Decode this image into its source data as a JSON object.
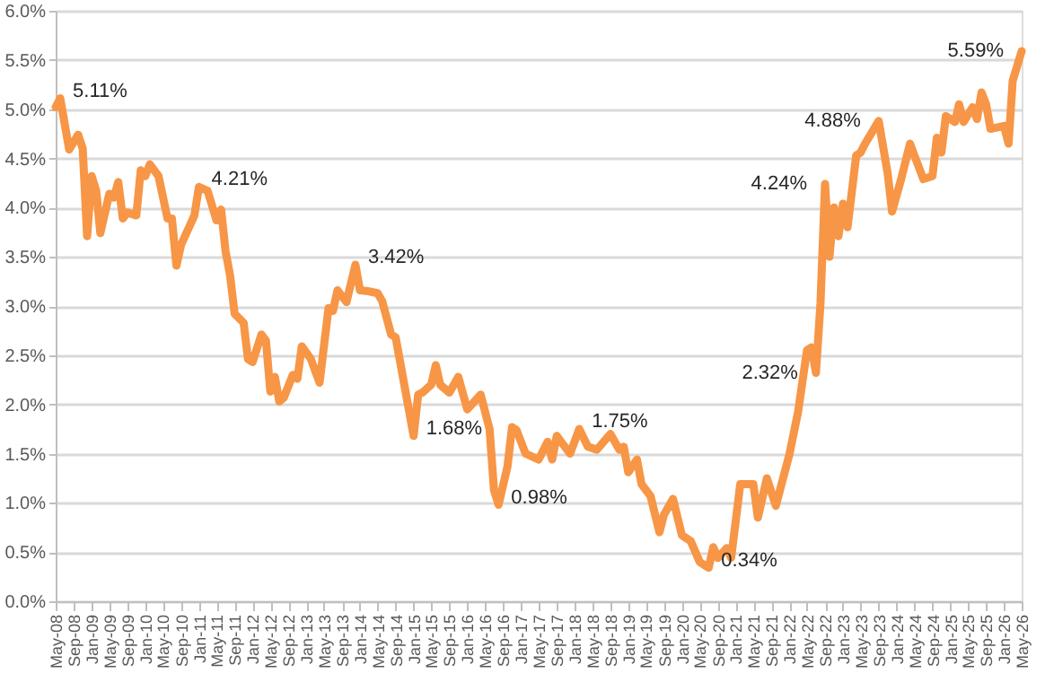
{
  "chart_data": {
    "type": "line",
    "grid": "y",
    "xlim": [
      "2008-05",
      "2026-05"
    ],
    "ylim": [
      0,
      6
    ],
    "yticks": [
      {
        "value": 0,
        "label": "0.0%"
      },
      {
        "value": 0.5,
        "label": "0.5%"
      },
      {
        "value": 1,
        "label": "1.0%"
      },
      {
        "value": 1.5,
        "label": "1.5%"
      },
      {
        "value": 2,
        "label": "2.0%"
      },
      {
        "value": 2.5,
        "label": "2.5%"
      },
      {
        "value": 3,
        "label": "3.0%"
      },
      {
        "value": 3.5,
        "label": "3.5%"
      },
      {
        "value": 4,
        "label": "4.0%"
      },
      {
        "value": 4.5,
        "label": "4.5%"
      },
      {
        "value": 5,
        "label": "5.0%"
      },
      {
        "value": 5.5,
        "label": "5.5%"
      },
      {
        "value": 6,
        "label": "6.0%"
      }
    ],
    "xticks": [
      {
        "value": "2008-05",
        "label": "May-08"
      },
      {
        "value": "2008-09",
        "label": "Sep-08"
      },
      {
        "value": "2009-01",
        "label": "Jan-09"
      },
      {
        "value": "2009-05",
        "label": "May-09"
      },
      {
        "value": "2009-09",
        "label": "Sep-09"
      },
      {
        "value": "2010-01",
        "label": "Jan-10"
      },
      {
        "value": "2010-05",
        "label": "May-10"
      },
      {
        "value": "2010-09",
        "label": "Sep-10"
      },
      {
        "value": "2011-01",
        "label": "Jan-11"
      },
      {
        "value": "2011-05",
        "label": "May-11"
      },
      {
        "value": "2011-09",
        "label": "Sep-11"
      },
      {
        "value": "2012-01",
        "label": "Jan-12"
      },
      {
        "value": "2012-05",
        "label": "May-12"
      },
      {
        "value": "2012-09",
        "label": "Sep-12"
      },
      {
        "value": "2013-01",
        "label": "Jan-13"
      },
      {
        "value": "2013-05",
        "label": "May-13"
      },
      {
        "value": "2013-09",
        "label": "Sep-13"
      },
      {
        "value": "2014-01",
        "label": "Jan-14"
      },
      {
        "value": "2014-05",
        "label": "May-14"
      },
      {
        "value": "2014-09",
        "label": "Sep-14"
      },
      {
        "value": "2015-01",
        "label": "Jan-15"
      },
      {
        "value": "2015-05",
        "label": "May-15"
      },
      {
        "value": "2015-09",
        "label": "Sep-15"
      },
      {
        "value": "2016-01",
        "label": "Jan-16"
      },
      {
        "value": "2016-05",
        "label": "May-16"
      },
      {
        "value": "2016-09",
        "label": "Sep-16"
      },
      {
        "value": "2017-01",
        "label": "Jan-17"
      },
      {
        "value": "2017-05",
        "label": "May-17"
      },
      {
        "value": "2017-09",
        "label": "Sep-17"
      },
      {
        "value": "2018-01",
        "label": "Jan-18"
      },
      {
        "value": "2018-05",
        "label": "May-18"
      },
      {
        "value": "2018-09",
        "label": "Sep-18"
      },
      {
        "value": "2019-01",
        "label": "Jan-19"
      },
      {
        "value": "2019-05",
        "label": "May-19"
      },
      {
        "value": "2019-09",
        "label": "Sep-19"
      },
      {
        "value": "2020-01",
        "label": "Jan-20"
      },
      {
        "value": "2020-05",
        "label": "May-20"
      },
      {
        "value": "2020-09",
        "label": "Sep-20"
      },
      {
        "value": "2021-01",
        "label": "Jan-21"
      },
      {
        "value": "2021-05",
        "label": "May-21"
      },
      {
        "value": "2021-09",
        "label": "Sep-21"
      },
      {
        "value": "2022-01",
        "label": "Jan-22"
      },
      {
        "value": "2022-05",
        "label": "May-22"
      },
      {
        "value": "2022-09",
        "label": "Sep-22"
      },
      {
        "value": "2023-01",
        "label": "Jan-23"
      },
      {
        "value": "2023-05",
        "label": "May-23"
      },
      {
        "value": "2023-09",
        "label": "Sep-23"
      },
      {
        "value": "2024-01",
        "label": "Jan-24"
      },
      {
        "value": "2024-05",
        "label": "May-24"
      },
      {
        "value": "2024-09",
        "label": "Sep-24"
      },
      {
        "value": "2025-01",
        "label": "Jan-25"
      },
      {
        "value": "2025-05",
        "label": "May-25"
      },
      {
        "value": "2025-09",
        "label": "Sep-25"
      },
      {
        "value": "2026-01",
        "label": "Jan-26"
      },
      {
        "value": "2026-05",
        "label": "May-26"
      }
    ],
    "x": [
      "2008-05",
      "2008-06",
      "2008-08",
      "2008-10",
      "2008-11",
      "2008-12",
      "2009-01",
      "2009-02",
      "2009-03",
      "2009-05",
      "2009-06",
      "2009-07",
      "2009-08",
      "2009-09",
      "2009-11",
      "2009-12",
      "2010-01",
      "2010-02",
      "2010-04",
      "2010-06",
      "2010-07",
      "2010-08",
      "2010-09",
      "2010-12",
      "2011-01",
      "2011-03",
      "2011-05",
      "2011-06",
      "2011-07",
      "2011-08",
      "2011-09",
      "2011-11",
      "2011-12",
      "2012-01",
      "2012-03",
      "2012-04",
      "2012-05",
      "2012-06",
      "2012-07",
      "2012-08",
      "2012-10",
      "2012-11",
      "2012-12",
      "2013-02",
      "2013-04",
      "2013-06",
      "2013-07",
      "2013-08",
      "2013-10",
      "2013-12",
      "2014-01",
      "2014-03",
      "2014-05",
      "2014-06",
      "2014-08",
      "2014-09",
      "2015-01",
      "2015-02",
      "2015-03",
      "2015-05",
      "2015-06",
      "2015-07",
      "2015-09",
      "2015-11",
      "2016-01",
      "2016-04",
      "2016-06",
      "2016-07",
      "2016-08",
      "2016-10",
      "2016-11",
      "2016-12",
      "2017-02",
      "2017-05",
      "2017-07",
      "2017-08",
      "2017-09",
      "2017-10",
      "2017-12",
      "2018-02",
      "2018-04",
      "2018-06",
      "2018-09",
      "2018-11",
      "2018-12",
      "2019-01",
      "2019-03",
      "2019-04",
      "2019-06",
      "2019-08",
      "2019-09",
      "2019-11",
      "2020-01",
      "2020-03",
      "2020-05",
      "2020-07",
      "2020-08",
      "2020-09",
      "2020-11",
      "2020-12",
      "2021-02",
      "2021-05",
      "2021-06",
      "2021-08",
      "2021-10",
      "2022-01",
      "2022-03",
      "2022-05",
      "2022-06",
      "2022-07",
      "2022-08",
      "2022-09",
      "2022-10",
      "2022-11",
      "2022-12",
      "2023-01",
      "2023-02",
      "2023-04",
      "2023-05",
      "2023-06",
      "2023-09",
      "2023-11",
      "2023-12",
      "2024-02",
      "2024-04",
      "2024-05",
      "2024-07",
      "2024-09",
      "2024-10",
      "2024-11",
      "2024-12",
      "2025-02",
      "2025-03",
      "2025-04",
      "2025-06",
      "2025-07",
      "2025-08",
      "2025-09",
      "2025-10",
      "2026-01",
      "2026-02",
      "2026-03",
      "2026-05"
    ],
    "series": [
      {
        "color": "#f79646",
        "values": [
          5.02,
          5.11,
          4.59,
          4.74,
          4.6,
          3.71,
          4.32,
          4.17,
          3.74,
          4.14,
          4.1,
          4.26,
          3.89,
          3.95,
          3.92,
          4.38,
          4.32,
          4.44,
          4.32,
          3.89,
          3.89,
          3.41,
          3.62,
          3.92,
          4.21,
          4.17,
          3.87,
          3.98,
          3.56,
          3.31,
          2.92,
          2.83,
          2.46,
          2.43,
          2.71,
          2.65,
          2.13,
          2.28,
          2.03,
          2.07,
          2.3,
          2.26,
          2.59,
          2.46,
          2.22,
          2.98,
          2.95,
          3.16,
          3.04,
          3.42,
          3.16,
          3.15,
          3.13,
          3.05,
          2.71,
          2.68,
          1.68,
          2.1,
          2.12,
          2.2,
          2.4,
          2.2,
          2.12,
          2.28,
          1.95,
          2.1,
          1.75,
          1.13,
          0.98,
          1.37,
          1.77,
          1.74,
          1.5,
          1.44,
          1.62,
          1.44,
          1.68,
          1.62,
          1.5,
          1.75,
          1.57,
          1.54,
          1.7,
          1.54,
          1.57,
          1.31,
          1.44,
          1.19,
          1.07,
          0.7,
          0.88,
          1.04,
          0.67,
          0.61,
          0.4,
          0.34,
          0.55,
          0.44,
          0.54,
          0.44,
          1.19,
          1.19,
          0.85,
          1.25,
          0.97,
          1.49,
          1.92,
          2.55,
          2.58,
          2.32,
          3.03,
          4.24,
          3.5,
          4.0,
          3.71,
          4.04,
          3.8,
          4.53,
          4.56,
          4.65,
          4.88,
          4.35,
          3.96,
          4.29,
          4.65,
          4.53,
          4.29,
          4.32,
          4.71,
          4.56,
          4.93,
          4.87,
          5.05,
          4.87,
          5.02,
          4.9,
          5.17,
          5.05,
          4.8,
          4.83,
          4.65,
          5.29,
          5.59
        ]
      }
    ],
    "annotations": [
      {
        "text": "5.11%",
        "x": "2008-06",
        "y": 5.11
      },
      {
        "text": "4.21%",
        "x": "2011-01",
        "y": 4.21
      },
      {
        "text": "3.42%",
        "x": "2013-12",
        "y": 3.42
      },
      {
        "text": "1.68%",
        "x": "2015-01",
        "y": 1.68
      },
      {
        "text": "0.98%",
        "x": "2016-08",
        "y": 0.98
      },
      {
        "text": "1.75%",
        "x": "2018-02",
        "y": 1.75
      },
      {
        "text": "0.34%",
        "x": "2020-07",
        "y": 0.34
      },
      {
        "text": "2.32%",
        "x": "2022-07",
        "y": 2.32
      },
      {
        "text": "4.24%",
        "x": "2022-09",
        "y": 4.24
      },
      {
        "text": "4.88%",
        "x": "2023-09",
        "y": 4.88
      },
      {
        "text": "5.59%",
        "x": "2026-05",
        "y": 5.59
      }
    ]
  }
}
